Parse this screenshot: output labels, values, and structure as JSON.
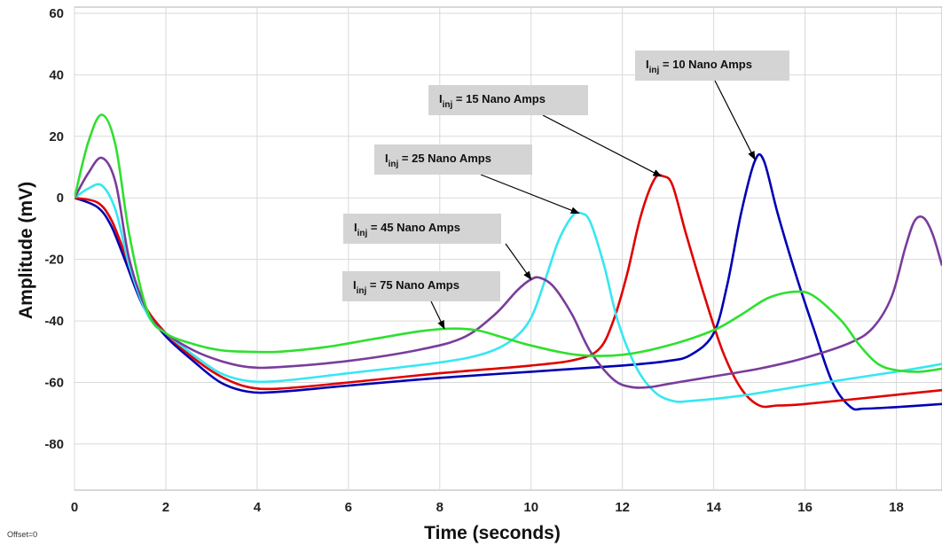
{
  "offset_label": "Offset=0",
  "chart_data": {
    "type": "line",
    "title": "",
    "xlabel": "Time (seconds)",
    "ylabel": "Amplitude (mV)",
    "xlim": [
      0,
      19
    ],
    "ylim": [
      -95,
      62
    ],
    "xticks": [
      0,
      2,
      4,
      6,
      8,
      10,
      12,
      14,
      16,
      18
    ],
    "yticks": [
      -80,
      -60,
      -40,
      -20,
      0,
      20,
      40,
      60
    ],
    "grid": true,
    "series": [
      {
        "color": "#0000b4",
        "x": [
          0,
          0.5,
          0.8,
          1.1,
          1.5,
          2,
          2.6,
          3.2,
          3.8,
          4.5,
          6,
          8,
          10,
          12,
          13,
          13.5,
          14,
          14.3,
          14.6,
          14.9,
          15.1,
          15.4,
          15.8,
          16.2,
          16.6,
          17,
          17.3,
          18,
          19
        ],
        "y": [
          0,
          -3,
          -9,
          -20,
          -35,
          -45,
          -53,
          -60,
          -63,
          -63,
          -61,
          -58.5,
          -56.5,
          -54.5,
          -53,
          -51,
          -44,
          -28,
          -5,
          12,
          12,
          -5,
          -25,
          -43,
          -60,
          -68,
          -68.5,
          -68,
          -67
        ]
      },
      {
        "color": "#e00000",
        "x": [
          0,
          0.5,
          0.8,
          1.1,
          1.5,
          2,
          2.6,
          3.2,
          3.8,
          4.5,
          6,
          8,
          10,
          11,
          11.5,
          11.8,
          12.1,
          12.4,
          12.7,
          12.9,
          13.1,
          13.4,
          13.8,
          14.2,
          14.6,
          15,
          15.4,
          16,
          18,
          19
        ],
        "y": [
          0,
          -1.5,
          -7,
          -18,
          -34,
          -44,
          -52,
          -58,
          -61.5,
          -62,
          -60,
          -57,
          -54.5,
          -52.5,
          -49,
          -40,
          -25,
          -6,
          6,
          7,
          4,
          -12,
          -32,
          -50,
          -62,
          -67.5,
          -67.5,
          -67,
          -64,
          -62.5
        ]
      },
      {
        "color": "#35e7f2",
        "x": [
          0,
          0.3,
          0.6,
          0.9,
          1.2,
          1.6,
          2,
          2.6,
          3.2,
          3.8,
          4.5,
          6,
          8,
          9,
          9.6,
          10,
          10.3,
          10.6,
          10.9,
          11.1,
          11.3,
          11.6,
          11.9,
          12.3,
          12.7,
          13.1,
          13.5,
          14.5,
          16,
          18,
          19
        ],
        "y": [
          0,
          3,
          4,
          -4,
          -22,
          -38,
          -44,
          -51,
          -57,
          -59.5,
          -59.5,
          -57,
          -53.5,
          -50.5,
          -46,
          -39,
          -27,
          -14,
          -6,
          -5,
          -8,
          -22,
          -40,
          -55,
          -63,
          -66,
          -66,
          -64.5,
          -61,
          -56.5,
          -54
        ]
      },
      {
        "color": "#7a3c9c",
        "x": [
          0,
          0.3,
          0.6,
          0.9,
          1.2,
          1.6,
          2,
          2.6,
          3.2,
          3.8,
          4.5,
          6,
          7.5,
          8.5,
          9.2,
          9.7,
          10,
          10.2,
          10.5,
          10.9,
          11.3,
          11.8,
          12.2,
          12.6,
          13,
          14,
          15,
          16,
          17,
          17.5,
          17.9,
          18.2,
          18.4,
          18.6,
          18.8,
          19
        ],
        "y": [
          0,
          8,
          13,
          5,
          -20,
          -37,
          -44,
          -49.5,
          -53,
          -55,
          -55,
          -53,
          -49.5,
          -45.5,
          -38,
          -30,
          -26.5,
          -26,
          -29,
          -38,
          -50,
          -59,
          -61.5,
          -61.5,
          -60.5,
          -58,
          -55.5,
          -52,
          -47,
          -42,
          -32,
          -16,
          -7.5,
          -6.5,
          -12,
          -22
        ]
      },
      {
        "color": "#2ee02e",
        "x": [
          0,
          0.3,
          0.6,
          0.9,
          1.2,
          1.6,
          2,
          2.6,
          3.2,
          3.8,
          4.5,
          5.5,
          6.5,
          7.5,
          8.2,
          8.8,
          9.3,
          10,
          11,
          12,
          13,
          14,
          14.6,
          15.2,
          15.8,
          16.2,
          16.8,
          17.2,
          17.6,
          18,
          18.5,
          19
        ],
        "y": [
          0,
          18,
          27,
          17,
          -12,
          -37,
          -44,
          -47.5,
          -49.5,
          -50,
          -50,
          -48.5,
          -46,
          -43.5,
          -42.5,
          -43,
          -45,
          -48,
          -51,
          -51,
          -48,
          -43,
          -38,
          -32.5,
          -30.5,
          -32,
          -40,
          -48,
          -54,
          -56,
          -56.5,
          -55.5
        ]
      }
    ],
    "annotations": [
      {
        "text_base": "I",
        "text_sub": "inj",
        "text_rest": " = 10 Nano Amps",
        "point": [
          14.9,
          12.5
        ]
      },
      {
        "text_base": "I",
        "text_sub": "inj",
        "text_rest": " = 15 Nano Amps",
        "point": [
          12.85,
          7
        ]
      },
      {
        "text_base": "I",
        "text_sub": "inj",
        "text_rest": " = 25 Nano Amps",
        "point": [
          11.05,
          -5
        ]
      },
      {
        "text_base": "I",
        "text_sub": "inj",
        "text_rest": " = 45 Nano Amps",
        "point": [
          10.0,
          -26.5
        ]
      },
      {
        "text_base": "I",
        "text_sub": "inj",
        "text_rest": " = 75 Nano Amps",
        "point": [
          8.1,
          -42.5
        ]
      }
    ]
  }
}
